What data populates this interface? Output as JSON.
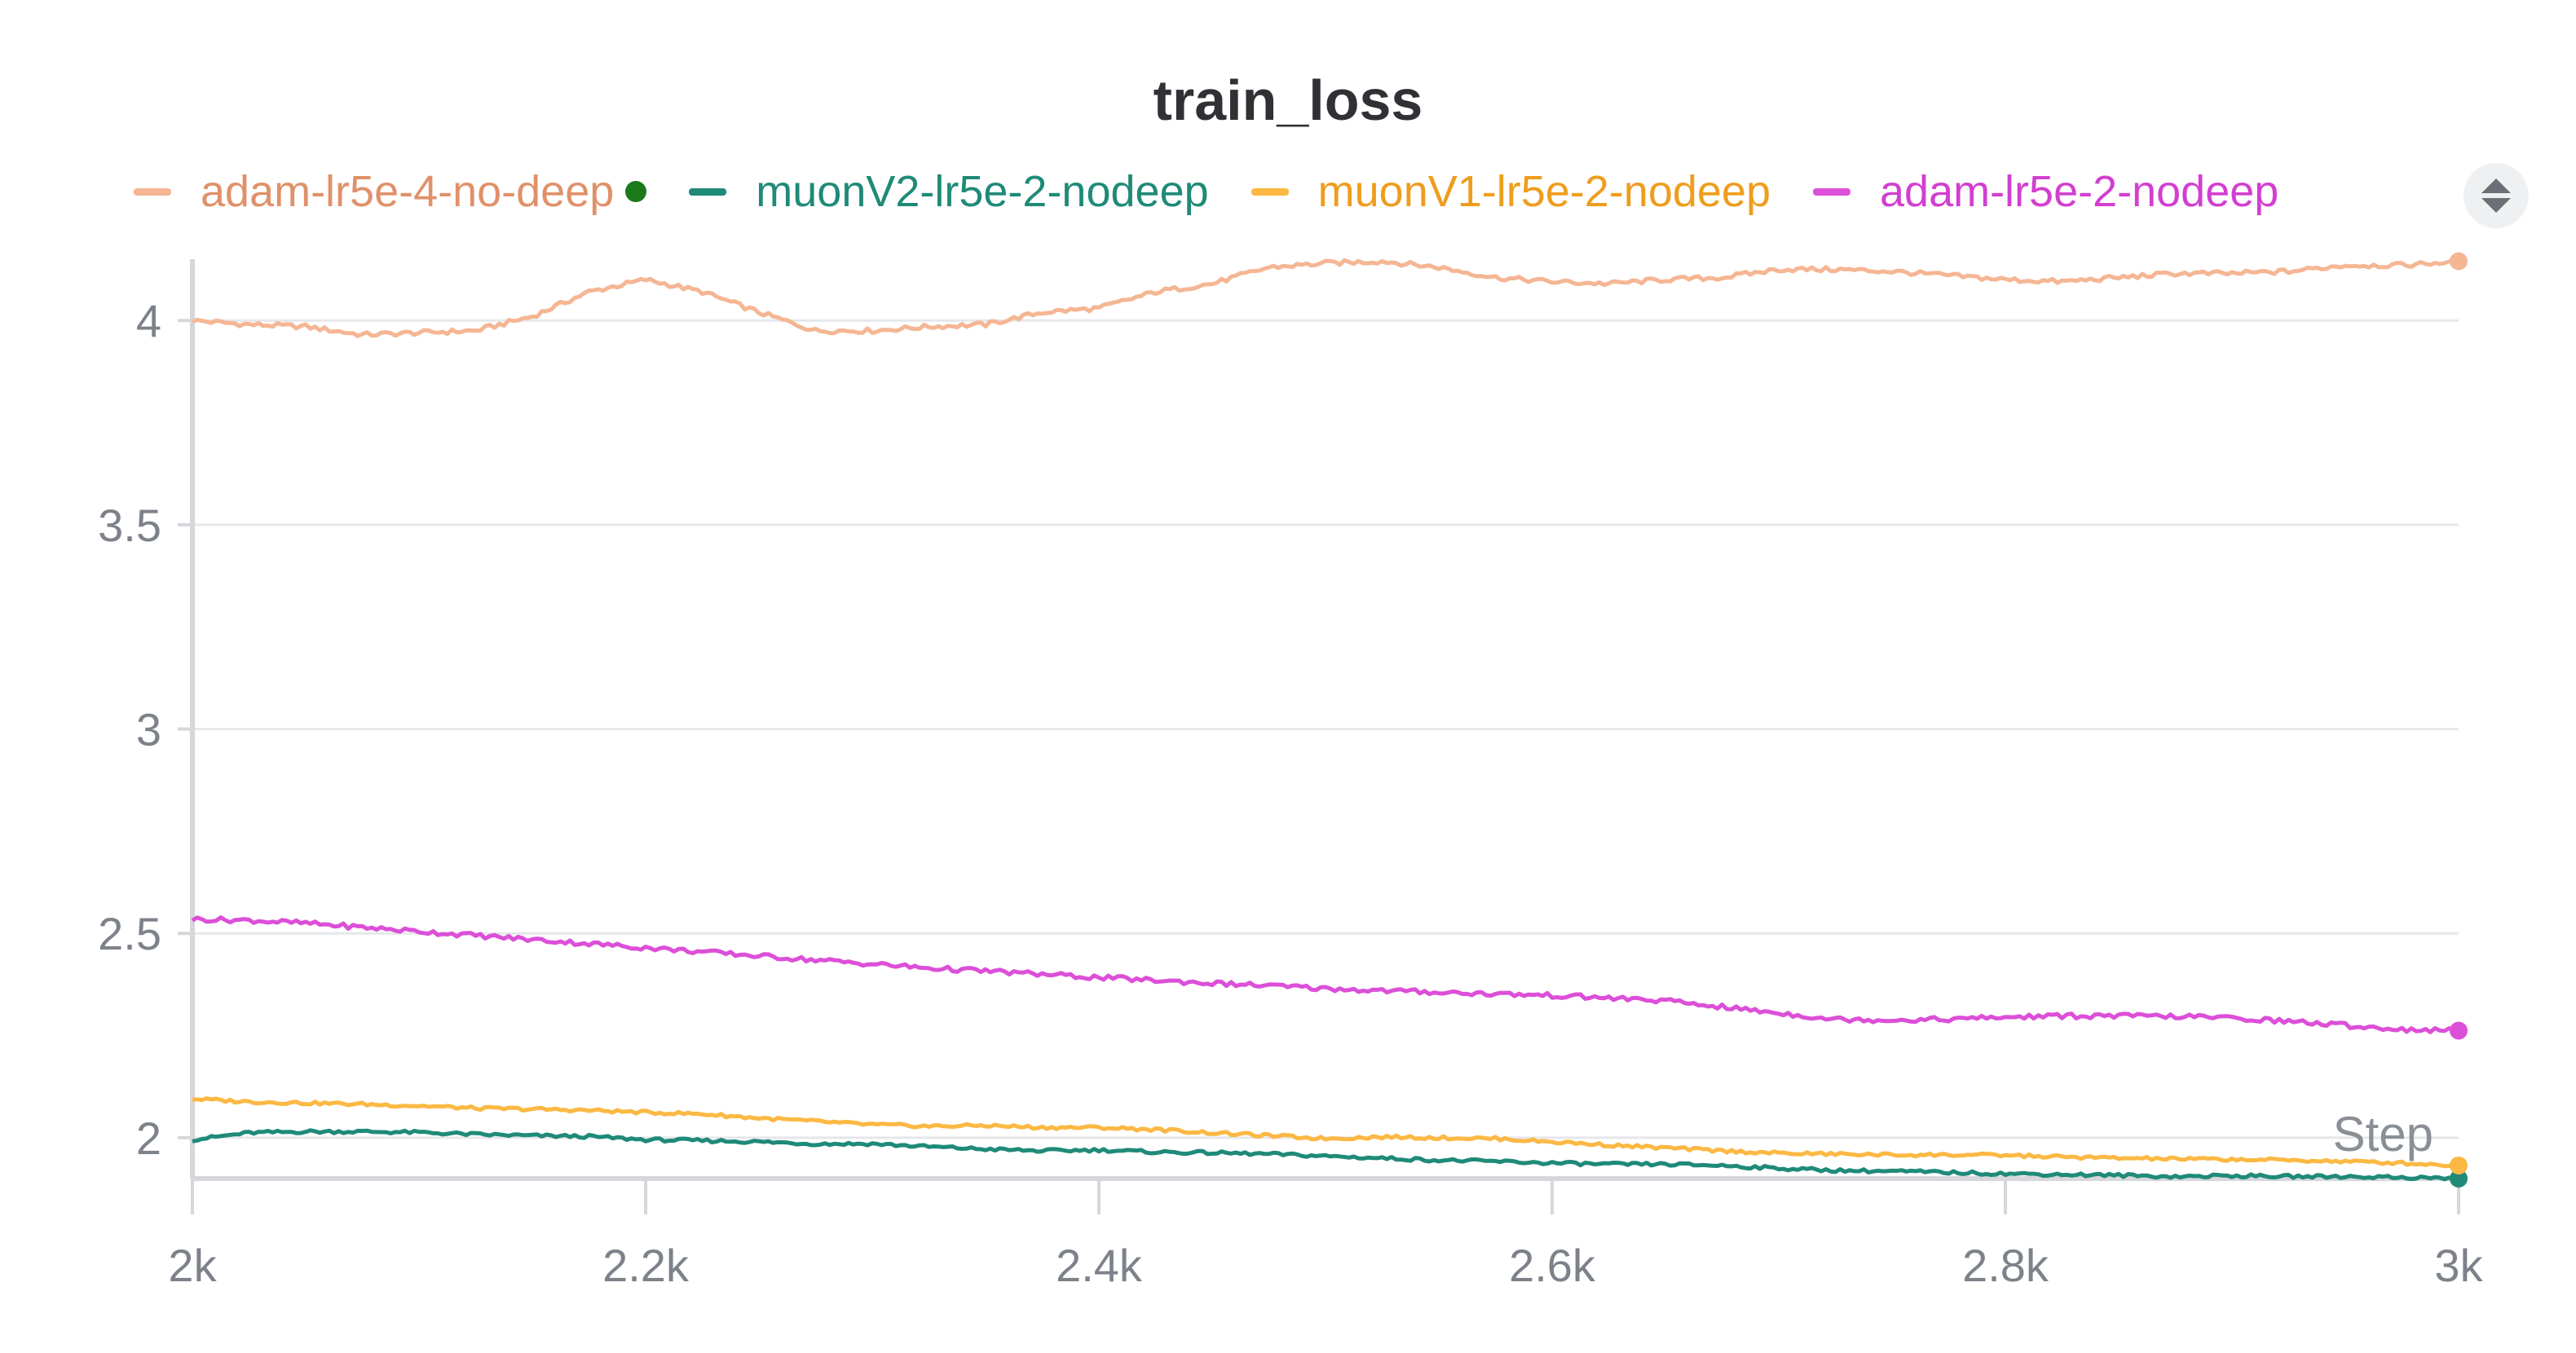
{
  "chart_data": {
    "type": "line",
    "title": "train_loss",
    "xlabel": "Step",
    "ylabel": "",
    "xlim": [
      2000,
      3000
    ],
    "ylim": [
      1.9,
      4.15
    ],
    "grid": true,
    "legend_position": "top",
    "x_ticks": [
      {
        "value": 2000,
        "label": "2k"
      },
      {
        "value": 2200,
        "label": "2.2k"
      },
      {
        "value": 2400,
        "label": "2.4k"
      },
      {
        "value": 2600,
        "label": "2.6k"
      },
      {
        "value": 2800,
        "label": "2.8k"
      },
      {
        "value": 3000,
        "label": "3k"
      }
    ],
    "y_ticks": [
      {
        "value": 2,
        "label": "2"
      },
      {
        "value": 2.5,
        "label": "2.5"
      },
      {
        "value": 3,
        "label": "3"
      },
      {
        "value": 3.5,
        "label": "3.5"
      },
      {
        "value": 4,
        "label": "4"
      }
    ],
    "series": [
      {
        "name": "adam-lr5e-4-no-deep",
        "color": "#f5b694",
        "label_color": "#e0916a",
        "legend_dot_color": "#1a7a1a",
        "points": [
          [
            2000,
            4.0
          ],
          [
            2025,
            3.99
          ],
          [
            2050,
            3.985
          ],
          [
            2075,
            3.965
          ],
          [
            2100,
            3.97
          ],
          [
            2125,
            3.975
          ],
          [
            2150,
            4.01
          ],
          [
            2175,
            4.07
          ],
          [
            2200,
            4.1
          ],
          [
            2225,
            4.07
          ],
          [
            2250,
            4.02
          ],
          [
            2275,
            3.975
          ],
          [
            2300,
            3.975
          ],
          [
            2325,
            3.985
          ],
          [
            2350,
            3.99
          ],
          [
            2375,
            4.02
          ],
          [
            2400,
            4.03
          ],
          [
            2425,
            4.07
          ],
          [
            2450,
            4.09
          ],
          [
            2475,
            4.13
          ],
          [
            2500,
            4.14
          ],
          [
            2525,
            4.145
          ],
          [
            2550,
            4.13
          ],
          [
            2575,
            4.105
          ],
          [
            2600,
            4.095
          ],
          [
            2625,
            4.09
          ],
          [
            2650,
            4.1
          ],
          [
            2675,
            4.105
          ],
          [
            2700,
            4.125
          ],
          [
            2725,
            4.125
          ],
          [
            2750,
            4.12
          ],
          [
            2775,
            4.11
          ],
          [
            2800,
            4.1
          ],
          [
            2825,
            4.095
          ],
          [
            2850,
            4.105
          ],
          [
            2875,
            4.115
          ],
          [
            2900,
            4.115
          ],
          [
            2925,
            4.12
          ],
          [
            2950,
            4.135
          ],
          [
            2975,
            4.135
          ],
          [
            3000,
            4.145
          ]
        ]
      },
      {
        "name": "muonV2-lr5e-2-nodeep",
        "color": "#1f8a78",
        "label_color": "#1f8a78",
        "points": [
          [
            2000,
            1.995
          ],
          [
            2025,
            2.012
          ],
          [
            2050,
            2.015
          ],
          [
            2075,
            2.015
          ],
          [
            2100,
            2.013
          ],
          [
            2125,
            2.008
          ],
          [
            2150,
            2.005
          ],
          [
            2175,
            2.003
          ],
          [
            2200,
            1.995
          ],
          [
            2225,
            1.993
          ],
          [
            2250,
            1.99
          ],
          [
            2275,
            1.985
          ],
          [
            2300,
            1.985
          ],
          [
            2325,
            1.978
          ],
          [
            2350,
            1.972
          ],
          [
            2375,
            1.968
          ],
          [
            2400,
            1.97
          ],
          [
            2425,
            1.965
          ],
          [
            2450,
            1.963
          ],
          [
            2475,
            1.96
          ],
          [
            2500,
            1.955
          ],
          [
            2525,
            1.95
          ],
          [
            2550,
            1.945
          ],
          [
            2575,
            1.942
          ],
          [
            2600,
            1.938
          ],
          [
            2625,
            1.935
          ],
          [
            2650,
            1.935
          ],
          [
            2675,
            1.932
          ],
          [
            2700,
            1.925
          ],
          [
            2725,
            1.92
          ],
          [
            2750,
            1.918
          ],
          [
            2775,
            1.915
          ],
          [
            2800,
            1.912
          ],
          [
            2825,
            1.91
          ],
          [
            2850,
            1.908
          ],
          [
            2875,
            1.905
          ],
          [
            2900,
            1.907
          ],
          [
            2925,
            1.905
          ],
          [
            2950,
            1.905
          ],
          [
            2975,
            1.903
          ],
          [
            3000,
            1.9
          ]
        ]
      },
      {
        "name": "muonV1-lr5e-2-nodeep",
        "color": "#fbb843",
        "label_color": "#ee9d1d",
        "points": [
          [
            2000,
            2.095
          ],
          [
            2025,
            2.088
          ],
          [
            2050,
            2.085
          ],
          [
            2075,
            2.082
          ],
          [
            2100,
            2.078
          ],
          [
            2125,
            2.072
          ],
          [
            2150,
            2.07
          ],
          [
            2175,
            2.067
          ],
          [
            2200,
            2.062
          ],
          [
            2225,
            2.058
          ],
          [
            2250,
            2.048
          ],
          [
            2275,
            2.04
          ],
          [
            2300,
            2.032
          ],
          [
            2325,
            2.028
          ],
          [
            2350,
            2.03
          ],
          [
            2375,
            2.025
          ],
          [
            2400,
            2.025
          ],
          [
            2425,
            2.02
          ],
          [
            2450,
            2.012
          ],
          [
            2475,
            2.005
          ],
          [
            2500,
            1.998
          ],
          [
            2525,
            2.002
          ],
          [
            2550,
            2.0
          ],
          [
            2575,
            1.998
          ],
          [
            2600,
            1.99
          ],
          [
            2625,
            1.982
          ],
          [
            2650,
            1.975
          ],
          [
            2675,
            1.968
          ],
          [
            2700,
            1.962
          ],
          [
            2725,
            1.96
          ],
          [
            2750,
            1.958
          ],
          [
            2775,
            1.958
          ],
          [
            2800,
            1.957
          ],
          [
            2825,
            1.953
          ],
          [
            2850,
            1.95
          ],
          [
            2875,
            1.948
          ],
          [
            2900,
            1.947
          ],
          [
            2925,
            1.945
          ],
          [
            2950,
            1.942
          ],
          [
            2975,
            1.938
          ],
          [
            3000,
            1.932
          ]
        ]
      },
      {
        "name": "adam-lr5e-2-nodeep",
        "color": "#dc4fd8",
        "label_color": "#d23fd0",
        "points": [
          [
            2000,
            2.535
          ],
          [
            2025,
            2.532
          ],
          [
            2050,
            2.525
          ],
          [
            2075,
            2.515
          ],
          [
            2100,
            2.505
          ],
          [
            2125,
            2.495
          ],
          [
            2150,
            2.485
          ],
          [
            2175,
            2.475
          ],
          [
            2200,
            2.465
          ],
          [
            2225,
            2.455
          ],
          [
            2250,
            2.445
          ],
          [
            2275,
            2.435
          ],
          [
            2300,
            2.425
          ],
          [
            2325,
            2.415
          ],
          [
            2350,
            2.408
          ],
          [
            2375,
            2.4
          ],
          [
            2400,
            2.392
          ],
          [
            2425,
            2.385
          ],
          [
            2450,
            2.378
          ],
          [
            2475,
            2.372
          ],
          [
            2500,
            2.365
          ],
          [
            2525,
            2.36
          ],
          [
            2550,
            2.356
          ],
          [
            2575,
            2.352
          ],
          [
            2600,
            2.348
          ],
          [
            2625,
            2.342
          ],
          [
            2650,
            2.335
          ],
          [
            2675,
            2.32
          ],
          [
            2700,
            2.305
          ],
          [
            2725,
            2.29
          ],
          [
            2750,
            2.288
          ],
          [
            2775,
            2.29
          ],
          [
            2800,
            2.295
          ],
          [
            2825,
            2.298
          ],
          [
            2850,
            2.298
          ],
          [
            2875,
            2.297
          ],
          [
            2900,
            2.293
          ],
          [
            2925,
            2.285
          ],
          [
            2950,
            2.275
          ],
          [
            2975,
            2.265
          ],
          [
            3000,
            2.262
          ]
        ]
      }
    ]
  }
}
